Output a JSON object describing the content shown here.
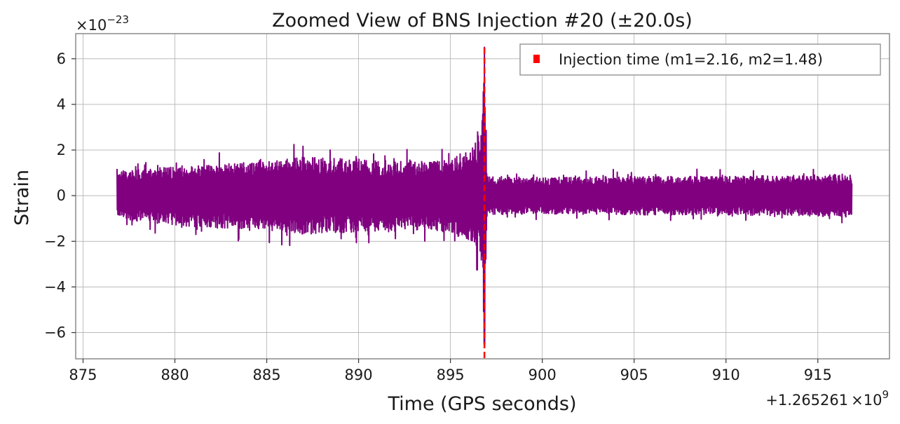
{
  "chart_data": {
    "type": "line",
    "title": "Zoomed View of BNS Injection #20 (±20.0s)",
    "xlabel": "Time (GPS seconds)",
    "ylabel": "Strain",
    "x_offset_label": "+1.265261",
    "x_offset_label_exp": "×10",
    "x_offset_label_pow": "9",
    "y_scale_label": "×10",
    "y_scale_label_pow": "−23",
    "xlim": [
      874.6,
      918.9
    ],
    "ylim": [
      -7.15,
      7.1
    ],
    "xticks": [
      875,
      880,
      885,
      890,
      895,
      900,
      905,
      910,
      915
    ],
    "yticks": [
      -6,
      -4,
      -2,
      0,
      2,
      4,
      6
    ],
    "ytick_labels": [
      "−6",
      "−4",
      "−2",
      "0",
      "2",
      "4",
      "6"
    ],
    "grid": true,
    "series_color": "#800080",
    "injection_color": "#ff0000",
    "legend": {
      "label": "Injection time (m1=2.16, m2=1.48)",
      "placement": "top-right"
    },
    "injection_time": 896.85,
    "series": [
      {
        "name": "",
        "x_start": 876.85,
        "x_end": 916.85,
        "envelope_time": [
          876.85,
          880,
          885,
          887,
          890,
          893,
          895,
          896.2,
          896.7,
          896.85,
          897.0,
          900,
          905,
          910,
          916.85
        ],
        "envelope_amplitude": [
          1.1,
          1.4,
          1.6,
          1.8,
          1.7,
          1.6,
          1.7,
          2.3,
          3.2,
          6.5,
          0.9,
          0.85,
          0.9,
          0.9,
          1.0
        ]
      }
    ]
  }
}
